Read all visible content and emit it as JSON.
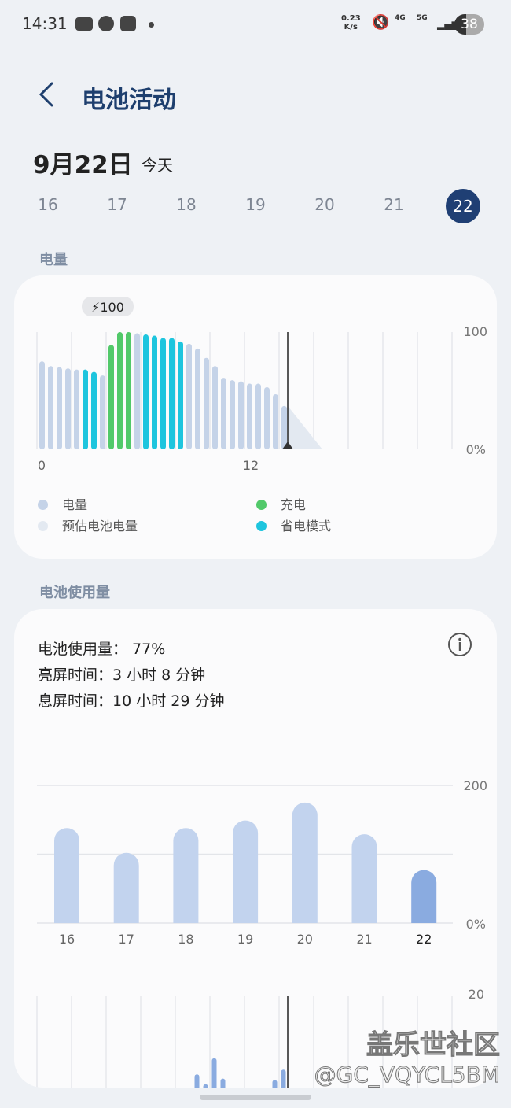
{
  "status_bar": {
    "time": "14:31",
    "net_speed": "0.23",
    "net_unit": "K/s",
    "net4g": "4G",
    "net5g": "5G",
    "battery": "38",
    "icons": [
      "voicemail-icon",
      "zhi-app-icon",
      "heart-app-icon",
      "dot-icon",
      "mute-icon",
      "signal-icon",
      "signal-icon",
      "battery-icon"
    ]
  },
  "header": {
    "title": "电池活动",
    "back_icon": "chevron-left-icon"
  },
  "date": {
    "label": "9月22日",
    "sub": "今天"
  },
  "days": [
    "16",
    "17",
    "18",
    "19",
    "20",
    "21",
    "22"
  ],
  "selected_day": "22",
  "colors": {
    "accent": "#1f3f74",
    "level": "#c5d3e8",
    "charging": "#52c96a",
    "power_saving": "#1ec5de",
    "estimated": "#e3e9f1",
    "usage": "#c2d3ee",
    "usage_today": "#8aabe0"
  },
  "battery_section": {
    "label": "电量",
    "tooltip": "100",
    "legend": [
      {
        "label": "电量",
        "color": "#c5d3e8"
      },
      {
        "label": "充电",
        "color": "#52c96a"
      },
      {
        "label": "预估电池电量",
        "color": "#e3e9f1"
      },
      {
        "label": "省电模式",
        "color": "#1ec5de"
      }
    ]
  },
  "usage_section": {
    "label": "电池使用量",
    "usage_line": "电池使用量： 77%",
    "screen_on": "亮屏时间：3 小时 8 分钟",
    "screen_off": "息屏时间：10 小时 29 分钟",
    "info_icon": "info-icon"
  },
  "chart_data": [
    {
      "type": "bar",
      "x_unit": "hour",
      "xticks": [
        "0",
        "12"
      ],
      "yticks": [
        "100",
        "0%"
      ],
      "ylim": [
        0,
        100
      ],
      "xlim": [
        0,
        24
      ],
      "current_time": 14.5,
      "x": [
        0,
        0.5,
        1,
        1.5,
        2,
        2.5,
        3,
        3.5,
        4,
        4.5,
        5,
        5.5,
        6,
        6.5,
        7,
        7.5,
        8,
        8.5,
        9,
        9.5,
        10,
        10.5,
        11,
        11.5,
        12,
        12.5,
        13,
        13.5,
        14
      ],
      "values": [
        75,
        71,
        70,
        69,
        68,
        68,
        66,
        63,
        89,
        100,
        100,
        99,
        98,
        97,
        95,
        95,
        92,
        90,
        86,
        78,
        71,
        61,
        59,
        58,
        56,
        56,
        53,
        47,
        37
      ],
      "state": [
        "level",
        "level",
        "level",
        "level",
        "level",
        "saving",
        "saving",
        "level",
        "charging",
        "charging",
        "charging",
        "level",
        "saving",
        "saving",
        "saving",
        "saving",
        "saving",
        "level",
        "level",
        "level",
        "level",
        "level",
        "level",
        "level",
        "level",
        "level",
        "level",
        "level",
        "level"
      ],
      "estimated": {
        "from": [
          14.5,
          37
        ],
        "to": [
          16.5,
          0
        ]
      }
    },
    {
      "type": "bar",
      "categories": [
        "16",
        "17",
        "18",
        "19",
        "20",
        "21",
        "22"
      ],
      "values": [
        138,
        102,
        138,
        149,
        175,
        129,
        77
      ],
      "yticks": [
        "200",
        "0%"
      ],
      "ylim": [
        0,
        200
      ],
      "grid": true
    },
    {
      "type": "bar",
      "yticks": [
        "20"
      ],
      "ylim": [
        0,
        20
      ],
      "x": [
        9.25,
        9.75,
        10.25,
        10.75,
        13.75,
        14.25
      ],
      "values": [
        2.8,
        0.7,
        6.2,
        1.9,
        1.6,
        3.8
      ],
      "current_time": 14.5
    }
  ],
  "watermark": {
    "line1": "盖乐世社区",
    "line2": "@GC_VQYCL5BM"
  }
}
